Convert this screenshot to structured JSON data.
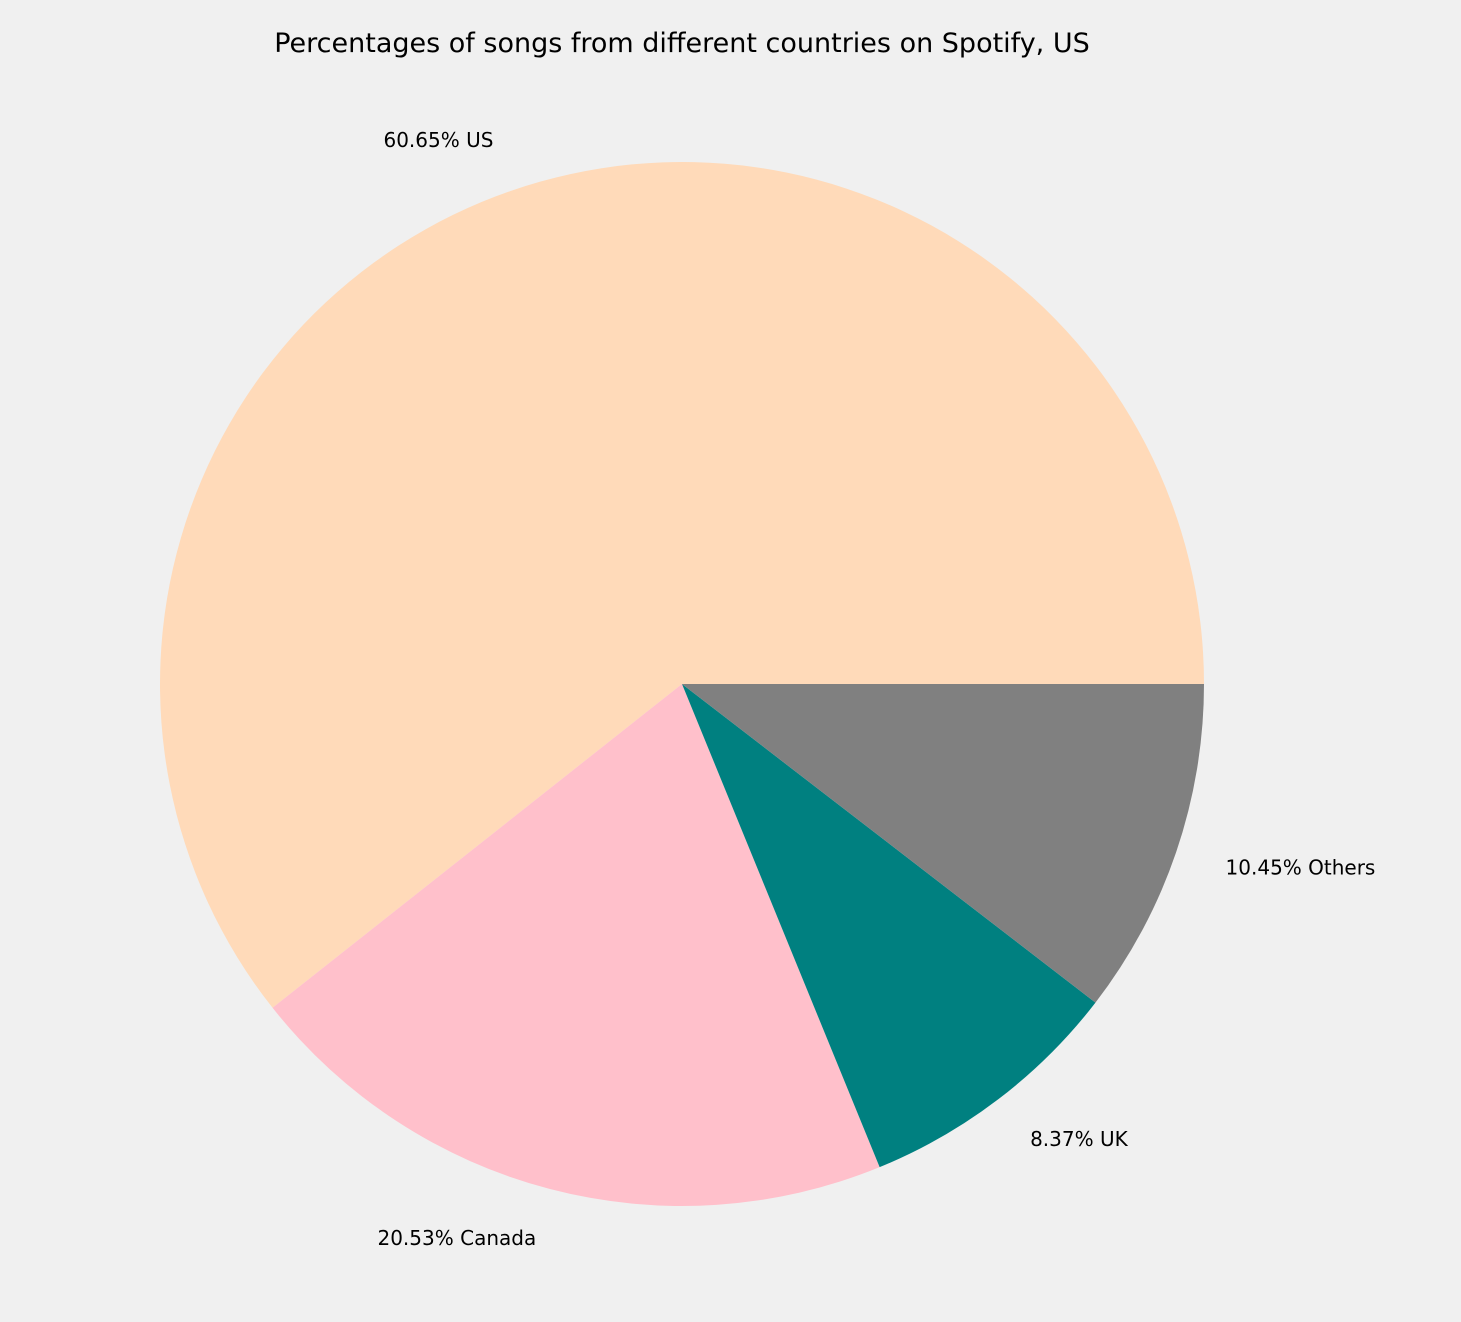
{
  "chart_data": {
    "type": "pie",
    "title": "Percentages of songs from different countries on Spotify, US",
    "slices": [
      {
        "label": "US",
        "value": 60.65,
        "display": "60.65% US",
        "color": "#ffdab9"
      },
      {
        "label": "Canada",
        "value": 20.53,
        "display": "20.53% Canada",
        "color": "#ffc0cb"
      },
      {
        "label": "UK",
        "value": 8.37,
        "display": "8.37% UK",
        "color": "#008080"
      },
      {
        "label": "Others",
        "value": 10.45,
        "display": "10.45% Others",
        "color": "#808080"
      }
    ],
    "start_angle": 0,
    "direction": "counterclockwise",
    "legend": "none",
    "background": "#f0f0f0"
  }
}
